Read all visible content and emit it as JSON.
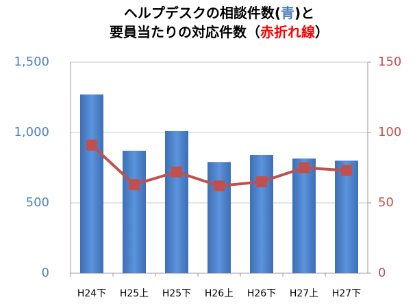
{
  "chart_data": {
    "type": "bar_line",
    "title_parts": [
      [
        "ヘルプデスクの相談件数(",
        "青",
        ")と"
      ],
      [
        "要員当たりの対応件数（",
        "赤折れ線",
        "）"
      ]
    ],
    "title_colors": [
      [
        "#000000",
        "#4f81bd",
        "#000000"
      ],
      [
        "#000000",
        "#ff0000",
        "#000000"
      ]
    ],
    "categories": [
      "H24下",
      "H25上",
      "H25下",
      "H26上",
      "H26下",
      "H27上",
      "H27下"
    ],
    "series": [
      {
        "color": "#4a7ec7",
        "values": [
          1270,
          870,
          1010,
          790,
          840,
          815,
          800
        ]
      },
      {
        "color": "#c0504d",
        "axis": "y2",
        "values": [
          91,
          63,
          72,
          62,
          65,
          75,
          73
        ]
      }
    ],
    "ylim": [
      0,
      1500
    ],
    "yticks": [
      0,
      {
        "value": 500,
        "label": "500"
      },
      {
        "value": 1000,
        "label": "1,000"
      },
      {
        "value": 1500,
        "label": "1,500"
      }
    ],
    "y2lim": [
      0,
      150
    ],
    "y2ticks": [
      0,
      50,
      100,
      150
    ],
    "ytick_color": "#4f81bd",
    "y2tick_color": "#c0504d",
    "grid": true
  }
}
